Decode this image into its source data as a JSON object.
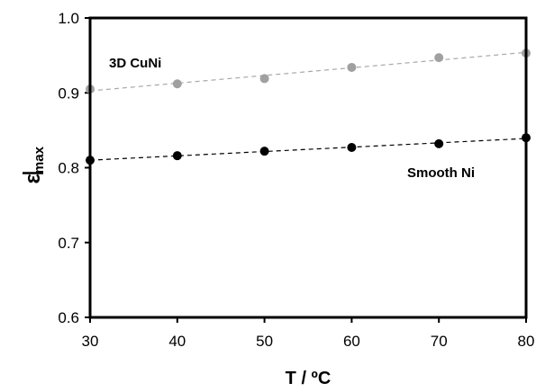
{
  "chart_data": {
    "type": "scatter",
    "title": "",
    "xlabel": "T / ºC",
    "ylabel_main": "ε",
    "ylabel_sub": "max",
    "xlim": [
      30,
      80
    ],
    "ylim": [
      0.6,
      1.0
    ],
    "xticks": [
      "30",
      "40",
      "50",
      "60",
      "70",
      "80"
    ],
    "yticks": [
      "0.6",
      "0.7",
      "0.8",
      "0.9",
      "1.0"
    ],
    "grid": false,
    "legend": "none",
    "series": [
      {
        "name": "3D CuNi",
        "color": "#a0a0a0",
        "trendline": "dashed",
        "x": [
          30,
          40,
          50,
          60,
          70,
          80
        ],
        "y": [
          0.905,
          0.912,
          0.919,
          0.934,
          0.947,
          0.953
        ]
      },
      {
        "name": "Smooth Ni",
        "color": "#000000",
        "trendline": "dashed",
        "x": [
          30,
          40,
          50,
          60,
          70,
          80
        ],
        "y": [
          0.81,
          0.816,
          0.822,
          0.827,
          0.832,
          0.84
        ]
      }
    ]
  }
}
